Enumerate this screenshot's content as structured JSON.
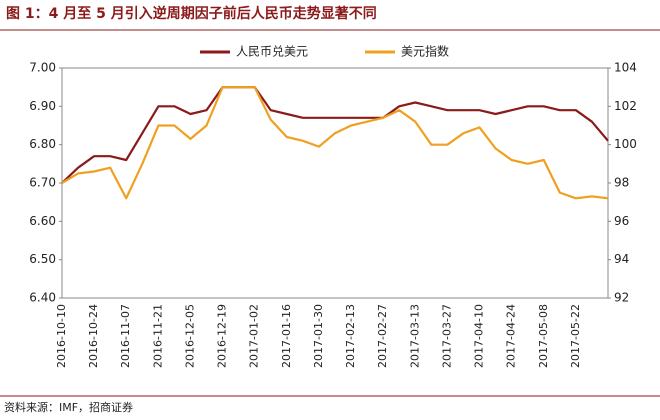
{
  "chart_data": {
    "type": "line",
    "title": "图 1：4 月至 5 月引入逆周期因子前后人民币走势显著不同",
    "source": "资料来源：IMF，招商证券",
    "x": [
      "2016-10-10",
      null,
      "2016-10-24",
      null,
      "2016-11-07",
      null,
      "2016-11-21",
      null,
      "2016-12-05",
      null,
      "2016-12-19",
      null,
      "2017-01-02",
      null,
      "2017-01-16",
      null,
      "2017-01-30",
      null,
      "2017-02-13",
      null,
      "2017-02-27",
      null,
      "2017-03-13",
      null,
      "2017-03-27",
      null,
      "2017-04-10",
      null,
      "2017-04-24",
      null,
      "2017-05-08",
      null,
      "2017-05-22",
      null,
      null
    ],
    "series": [
      {
        "name": "人民币兑美元",
        "color": "#8b1a1a",
        "axis": "y",
        "values": [
          6.7,
          6.74,
          6.77,
          6.77,
          6.76,
          6.83,
          6.9,
          6.9,
          6.88,
          6.89,
          6.95,
          6.95,
          6.95,
          6.89,
          6.88,
          6.87,
          6.87,
          6.87,
          6.87,
          6.87,
          6.87,
          6.9,
          6.91,
          6.9,
          6.89,
          6.89,
          6.89,
          6.88,
          6.89,
          6.9,
          6.9,
          6.89,
          6.89,
          6.86,
          6.81
        ]
      },
      {
        "name": "美元指数",
        "color": "#f0a020",
        "axis": "y2",
        "values": [
          98.0,
          98.5,
          98.6,
          98.8,
          97.2,
          99.0,
          101.0,
          101.0,
          100.3,
          101.0,
          103.0,
          103.0,
          103.0,
          101.3,
          100.4,
          100.2,
          99.9,
          100.6,
          101.0,
          101.2,
          101.4,
          101.8,
          101.2,
          100.0,
          100.0,
          100.6,
          100.9,
          99.8,
          99.2,
          99.0,
          99.2,
          97.5,
          97.2,
          97.3,
          97.2
        ]
      }
    ],
    "ylim": [
      6.4,
      7.0
    ],
    "yticks": [
      {
        "value": 6.4,
        "label": "6.40"
      },
      {
        "value": 6.5,
        "label": "6.50"
      },
      {
        "value": 6.6,
        "label": "6.60"
      },
      {
        "value": 6.7,
        "label": "6.70"
      },
      {
        "value": 6.8,
        "label": "6.80"
      },
      {
        "value": 6.9,
        "label": "6.90"
      },
      {
        "value": 7.0,
        "label": "7.00"
      }
    ],
    "y2lim": [
      92,
      104
    ],
    "y2ticks": [
      92,
      94,
      96,
      98,
      100,
      102,
      104
    ]
  }
}
